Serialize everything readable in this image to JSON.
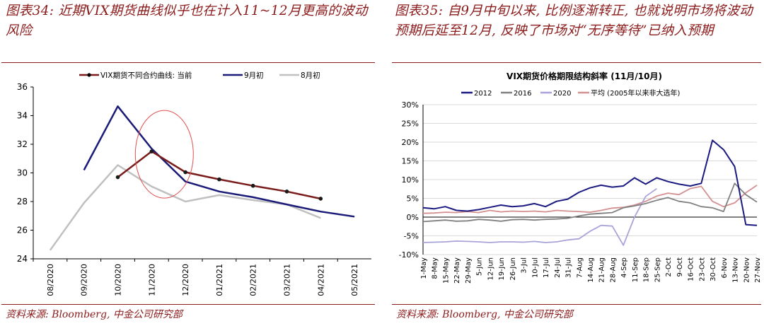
{
  "left": {
    "figure_title": "图表34: 近期VIX期货曲线似乎也在计入11~12月更高的波动风险",
    "source": "资料来源: Bloomberg, 中金公司研究部",
    "chart_data": {
      "type": "line",
      "title": "",
      "categories": [
        "08/2020",
        "09/2020",
        "10/2020",
        "11/2020",
        "12/2020",
        "01/2021",
        "02/2021",
        "03/2021",
        "04/2021",
        "05/2021"
      ],
      "ylim": [
        24,
        36
      ],
      "yticks": [
        24,
        26,
        28,
        30,
        32,
        34,
        36
      ],
      "grid": false,
      "legend": "top",
      "annotation": "red ellipse around 11/2020",
      "series": [
        {
          "name": "VIX期货不同合约曲线: 当前",
          "color": "#7b1c1c",
          "marker": true,
          "values": [
            null,
            null,
            29.7,
            31.5,
            30.05,
            29.55,
            29.1,
            28.7,
            28.2,
            null
          ]
        },
        {
          "name": "9月初",
          "color": "#1a1a78",
          "marker": false,
          "values": [
            null,
            30.2,
            34.65,
            31.7,
            29.4,
            28.7,
            28.3,
            27.8,
            27.3,
            26.95
          ]
        },
        {
          "name": "8月初",
          "color": "#c0c0c0",
          "marker": false,
          "values": [
            24.6,
            27.9,
            30.55,
            29.05,
            28.0,
            28.45,
            28.1,
            27.8,
            26.85,
            null
          ]
        }
      ]
    }
  },
  "right": {
    "figure_title": "图表35: 自9月中旬以来, 比例逐渐转正, 也就说明市场将波动预期后延至12月, 反映了市场对“无序等待”已纳入预期",
    "source": "资料来源: Bloomberg, 中金公司研究部",
    "chart_data": {
      "type": "line",
      "title": "VIX期货价格期限结构斜率 (11月/10月)",
      "categories": [
        "1-May",
        "8-May",
        "15-May",
        "22-May",
        "29-May",
        "5-Jun",
        "12-Jun",
        "19-Jun",
        "26-Jun",
        "3-Jul",
        "10-Jul",
        "17-Jul",
        "24-Jul",
        "31-Jul",
        "7-Aug",
        "14-Aug",
        "21-Aug",
        "28-Aug",
        "4-Sep",
        "11-Sep",
        "18-Sep",
        "25-Sep",
        "2-Oct",
        "9-Oct",
        "16-Oct",
        "23-Oct",
        "30-Oct",
        "6-Nov",
        "13-Nov",
        "20-Nov",
        "27-Nov"
      ],
      "ylim": [
        -10,
        30
      ],
      "yticks": [
        "-10%",
        "-5%",
        "0%",
        "5%",
        "10%",
        "15%",
        "20%",
        "25%",
        "30%"
      ],
      "grid": true,
      "legend": "top",
      "series": [
        {
          "name": "2012",
          "color": "#1a1a80",
          "values": [
            2.5,
            2.2,
            2.8,
            1.8,
            1.6,
            2.0,
            2.6,
            3.2,
            2.8,
            3.0,
            3.6,
            2.8,
            4.2,
            4.8,
            6.6,
            7.8,
            8.5,
            8.0,
            8.3,
            10.5,
            8.8,
            10.5,
            9.5,
            8.8,
            8.3,
            9.0,
            20.5,
            18.0,
            13.5,
            -2.0,
            -2.2
          ]
        },
        {
          "name": "2016",
          "color": "#808080",
          "values": [
            -1.2,
            -1.0,
            -0.8,
            -1.1,
            -1.0,
            -0.6,
            -0.8,
            -1.1,
            -0.7,
            -0.6,
            -0.8,
            -0.6,
            -0.5,
            -0.3,
            0.3,
            0.8,
            1.0,
            1.2,
            2.5,
            3.0,
            3.6,
            4.5,
            5.2,
            4.2,
            3.8,
            2.8,
            2.5,
            1.5,
            9.0,
            6.0,
            4.0
          ]
        },
        {
          "name": "2020",
          "color": "#a9a4d8",
          "values": [
            -6.8,
            -6.7,
            -6.6,
            -6.4,
            -6.5,
            -6.6,
            -6.8,
            -6.6,
            -6.6,
            -6.7,
            -6.5,
            -6.8,
            -6.6,
            -6.1,
            -5.8,
            -3.8,
            -2.2,
            -2.4,
            -7.5,
            0.0,
            5.5,
            7.6,
            null,
            null,
            null,
            null,
            null,
            null,
            null,
            null,
            null
          ]
        },
        {
          "name": "平均 (2005年以来非大选年)",
          "color": "#d49090",
          "values": [
            1.0,
            1.1,
            1.3,
            1.2,
            1.5,
            1.2,
            1.8,
            1.4,
            1.6,
            1.5,
            1.6,
            1.4,
            1.8,
            1.6,
            1.5,
            1.3,
            1.8,
            2.4,
            2.6,
            3.2,
            4.2,
            5.6,
            6.4,
            6.0,
            7.6,
            8.2,
            4.2,
            2.8,
            3.8,
            6.5,
            8.5
          ]
        }
      ]
    }
  }
}
